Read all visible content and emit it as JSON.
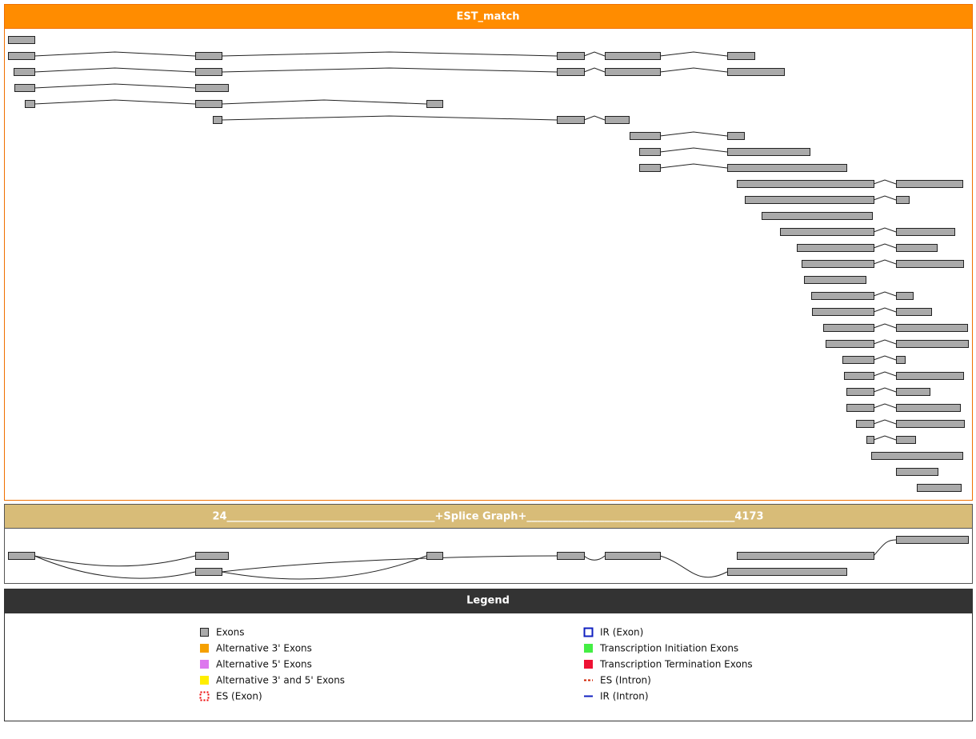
{
  "est_panel": {
    "title": "EST_match"
  },
  "splice_panel": {
    "title": "24________________________________________+Splice Graph+________________________________________4173"
  },
  "legend": {
    "title": "Legend",
    "items": [
      "Exons",
      "Alternative 3' Exons",
      "Alternative 5' Exons",
      "Alternative 3' and 5' Exons",
      "ES (Exon)",
      "IR (Exon)",
      "Transcription Initiation Exons",
      "Transcription Termination Exons",
      "ES (Intron)",
      "IR (Intron)"
    ]
  }
}
